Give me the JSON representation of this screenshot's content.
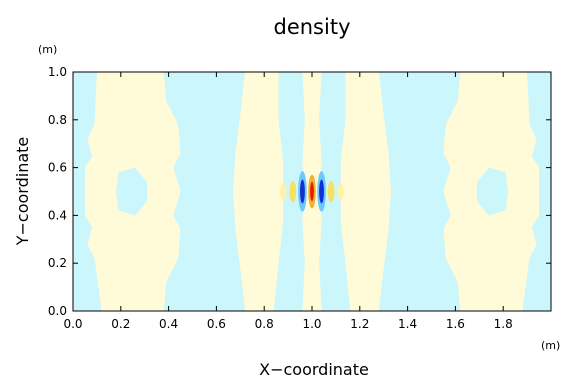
{
  "chart_data": {
    "type": "heatmap",
    "title": "density",
    "xlabel": "X−coordinate",
    "ylabel": "Y−coordinate",
    "x_unit": "(m)",
    "y_unit": "(m)",
    "xlim": [
      0.0,
      2.0
    ],
    "ylim": [
      0.0,
      1.0
    ],
    "x_ticks": [
      "0.0",
      "0.2",
      "0.4",
      "0.6",
      "0.8",
      "1.0",
      "1.2",
      "1.4",
      "1.6",
      "1.8"
    ],
    "y_ticks": [
      "0.0",
      "0.2",
      "0.4",
      "0.6",
      "0.8",
      "1.0"
    ],
    "colors": {
      "positive_light": "#fffbd8",
      "negative_light": "#cbf6fb",
      "strong_positive": "#e02000",
      "strong_negative": "#1030d0",
      "axis": "#000000"
    },
    "features": {
      "center": [
        1.0,
        0.5
      ],
      "note": "symmetric banded pattern about x = 1.0 with a localized oscillating pulse at the center"
    }
  }
}
